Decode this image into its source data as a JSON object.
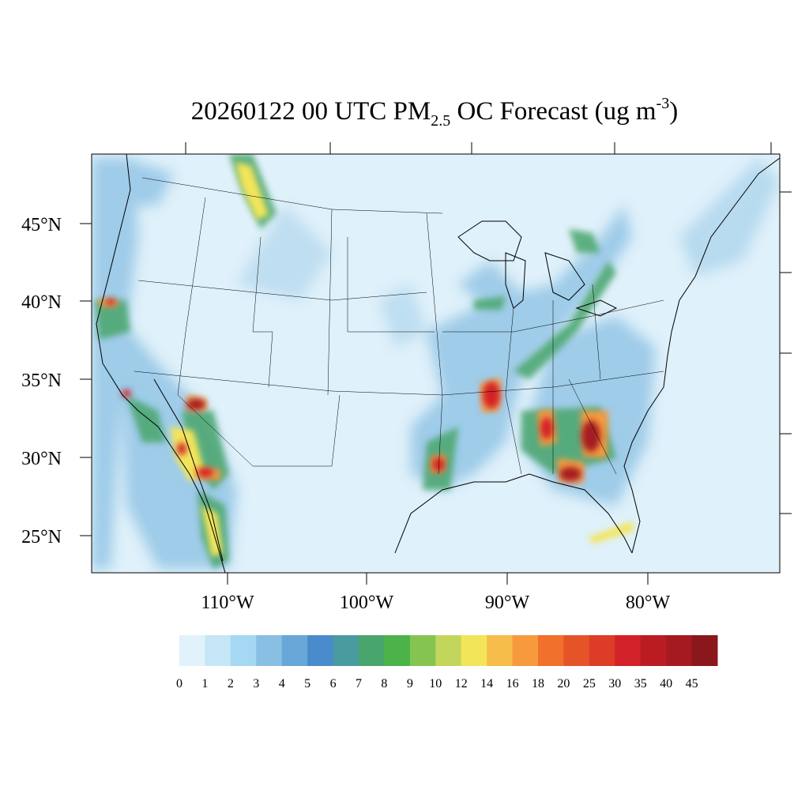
{
  "title": {
    "pre": "20260122 00 UTC PM",
    "sub": "2.5",
    "mid": " OC Forecast (ug m",
    "sup": "-3",
    "post": ")"
  },
  "axes": {
    "lat_labels": [
      "45°N",
      "40°N",
      "35°N",
      "30°N",
      "25°N"
    ],
    "lon_labels": [
      "110°W",
      "100°W",
      "90°W",
      "80°W"
    ]
  },
  "colorbar": {
    "labels": [
      "0",
      "1",
      "2",
      "3",
      "4",
      "5",
      "6",
      "7",
      "8",
      "9",
      "10",
      "12",
      "14",
      "16",
      "18",
      "20",
      "25",
      "30",
      "35",
      "40",
      "45"
    ],
    "colors": [
      "#e1f2fa",
      "#c5e6f7",
      "#a5d8f3",
      "#89bfe3",
      "#68a7d8",
      "#4a8bcc",
      "#4a9ba0",
      "#48a56c",
      "#4bb34a",
      "#86c452",
      "#c3d65c",
      "#f3e55a",
      "#f7bd4b",
      "#f69a3d",
      "#f0702c",
      "#e55429",
      "#dd3c27",
      "#d22128",
      "#bb1c24",
      "#a51a20",
      "#8a171b"
    ]
  },
  "map": {
    "background_color": "#dff1fa",
    "hotspot_colors": {
      "blue": "#89bfe3",
      "green": "#48a56c",
      "yellow": "#f3e55a",
      "orange": "#f69a3d",
      "red": "#d22128",
      "darkred": "#a51a20"
    }
  }
}
